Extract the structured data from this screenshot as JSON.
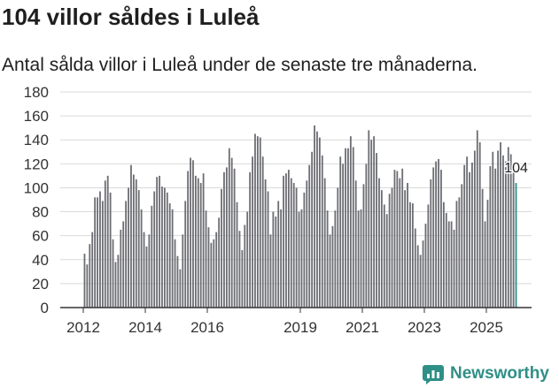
{
  "header": {
    "title": "104 villor såldes i Luleå",
    "subtitle": "Antal sålda villor i Luleå under de senaste tre månaderna."
  },
  "footer": {
    "brand": "Newsworthy"
  },
  "colors": {
    "bar": "#6d6e73",
    "highlight": "#2f8f86",
    "grid": "#d9d9d9",
    "axis": "#333333",
    "brand": "#2f8f86"
  },
  "chart_data": {
    "type": "bar",
    "title": "104 villor såldes i Luleå",
    "subtitle": "Antal sålda villor i Luleå under de senaste tre månaderna.",
    "xlabel": "",
    "ylabel": "",
    "ylim": [
      0,
      180
    ],
    "yticks": [
      0,
      20,
      40,
      60,
      80,
      100,
      120,
      140,
      160,
      180
    ],
    "xtick_labels": [
      "2012",
      "2014",
      "2016",
      "2019",
      "2021",
      "2023",
      "2025"
    ],
    "xtick_years": [
      2012,
      2014,
      2016,
      2019,
      2021,
      2023,
      2025
    ],
    "start_year": 2012,
    "start_month": 1,
    "months_per_year": 12,
    "x_min_year": 2012,
    "x_max_year": 2026,
    "grid": true,
    "highlight_last": true,
    "annotation": "104",
    "values": [
      45,
      36,
      53,
      63,
      92,
      92,
      97,
      89,
      106,
      110,
      96,
      57,
      38,
      44,
      65,
      72,
      89,
      100,
      119,
      111,
      107,
      98,
      82,
      63,
      51,
      61,
      85,
      97,
      109,
      110,
      101,
      100,
      96,
      87,
      82,
      57,
      43,
      32,
      61,
      89,
      114,
      125,
      123,
      110,
      108,
      104,
      112,
      81,
      67,
      54,
      57,
      63,
      75,
      99,
      113,
      117,
      133,
      125,
      116,
      88,
      64,
      48,
      69,
      80,
      113,
      126,
      145,
      143,
      142,
      126,
      107,
      97,
      61,
      80,
      76,
      89,
      82,
      110,
      112,
      115,
      108,
      104,
      100,
      80,
      82,
      96,
      106,
      119,
      130,
      152,
      147,
      142,
      127,
      108,
      81,
      61,
      68,
      81,
      100,
      126,
      120,
      133,
      133,
      143,
      134,
      106,
      81,
      82,
      103,
      120,
      148,
      140,
      143,
      129,
      108,
      98,
      86,
      78,
      95,
      100,
      115,
      114,
      108,
      116,
      98,
      104,
      88,
      87,
      66,
      52,
      44,
      56,
      70,
      86,
      107,
      117,
      122,
      124,
      115,
      88,
      79,
      72,
      72,
      65,
      89,
      92,
      103,
      119,
      126,
      113,
      121,
      131,
      148,
      138,
      99,
      72,
      90,
      118,
      130,
      116,
      131,
      138,
      127,
      122,
      134,
      128,
      116,
      104
    ]
  }
}
